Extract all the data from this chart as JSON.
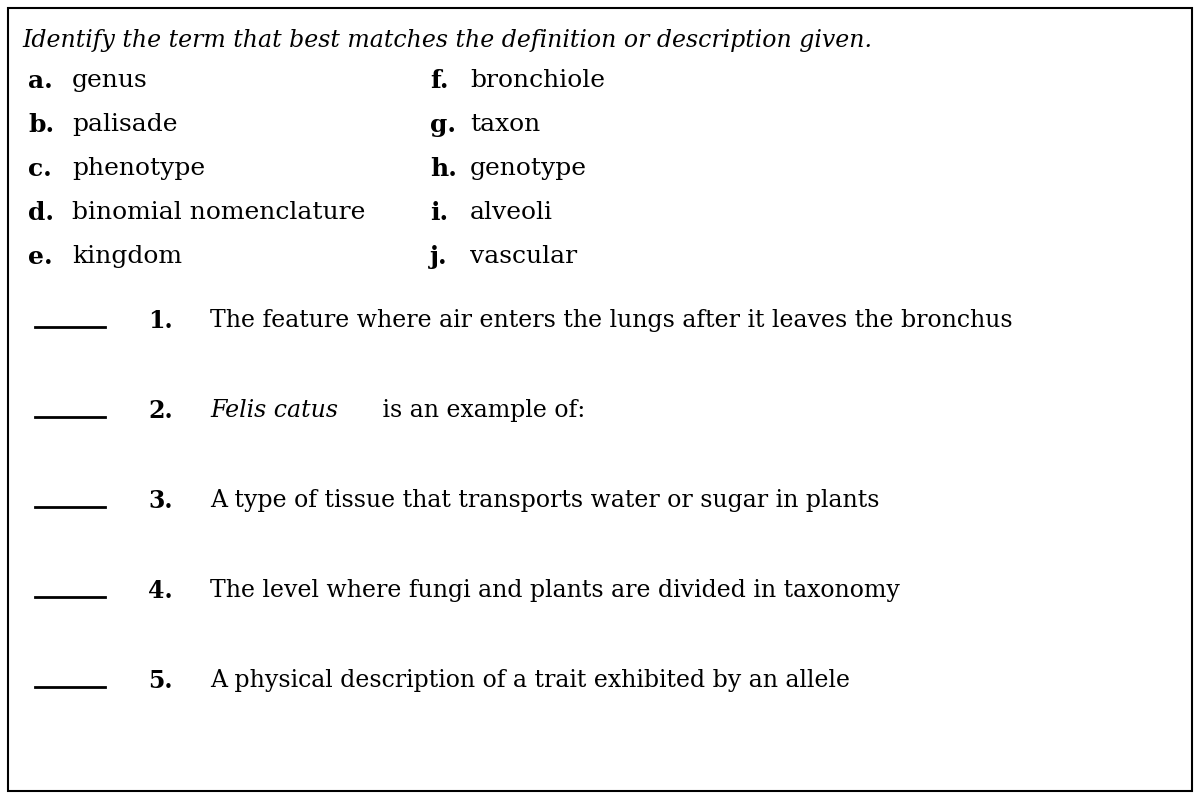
{
  "title": "Identify the term that best matches the definition or description given.",
  "bg_color": "#ffffff",
  "border_color": "#000000",
  "text_color": "#000000",
  "left_terms": [
    [
      "a.",
      "genus"
    ],
    [
      "b.",
      "palisade"
    ],
    [
      "c.",
      "phenotype"
    ],
    [
      "d.",
      "binomial nomenclature"
    ],
    [
      "e.",
      "kingdom"
    ]
  ],
  "right_terms": [
    [
      "f.",
      "bronchiole"
    ],
    [
      "g.",
      "taxon"
    ],
    [
      "h.",
      "genotype"
    ],
    [
      "i.",
      "alveoli"
    ],
    [
      "j.",
      "vascular"
    ]
  ],
  "questions": [
    [
      "1.",
      "The feature where air enters the lungs after it leaves the bronchus"
    ],
    [
      "2.",
      "Felis catus",
      " is an example of:"
    ],
    [
      "3.",
      "A type of tissue that transports water or sugar in plants"
    ],
    [
      "4.",
      "The level where fungi and plants are divided in taxonomy"
    ],
    [
      "5.",
      "A physical description of a trait exhibited by an allele"
    ]
  ],
  "figsize": [
    12.0,
    7.99
  ],
  "dpi": 100,
  "title_fontsize": 17,
  "term_fontsize": 18,
  "question_fontsize": 17
}
